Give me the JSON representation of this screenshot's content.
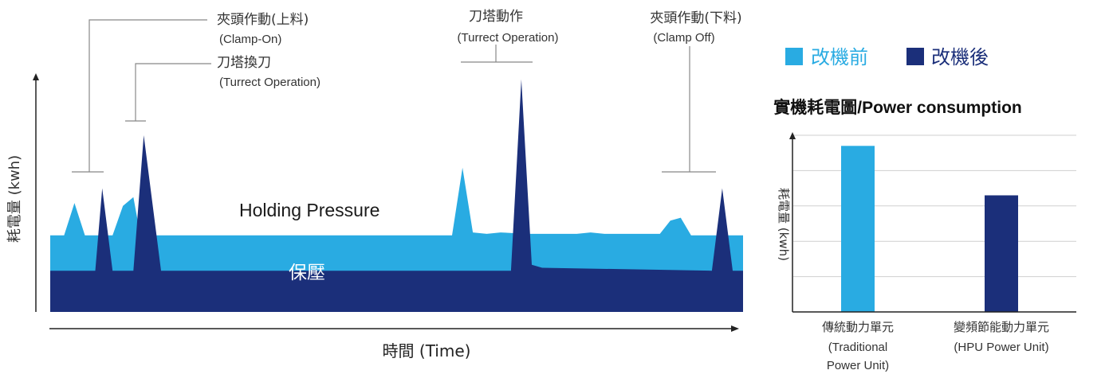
{
  "colors": {
    "before": "#29abe2",
    "after": "#1b2f7a",
    "axis": "#222222",
    "leader": "#888888",
    "grid": "#cfcfcf"
  },
  "annotations": [
    {
      "zh": "夾頭作動(上料)",
      "en": "(Clamp-On)"
    },
    {
      "zh": "刀塔換刀",
      "en": "(Turrect Operation)"
    },
    {
      "zh": "刀塔動作",
      "en": "(Turrect Operation)"
    },
    {
      "zh": "夾頭作動(下料)",
      "en": "(Clamp Off)"
    }
  ],
  "legend": [
    {
      "label": "改機前",
      "color": "#29abe2"
    },
    {
      "label": "改機後",
      "color": "#1b2f7a"
    }
  ],
  "chart_data": [
    {
      "type": "area",
      "ylabel": "耗電量 (kwh)",
      "xlabel": "時間 (Time)",
      "labels": {
        "holding_en": "Holding Pressure",
        "holding_zh": "保壓"
      },
      "series": [
        {
          "name": "改機前",
          "color": "#29abe2",
          "points": [
            [
              0,
              0.52
            ],
            [
              2,
              0.52
            ],
            [
              3.5,
              0.74
            ],
            [
              5,
              0.52
            ],
            [
              9,
              0.52
            ],
            [
              10.5,
              0.72
            ],
            [
              12,
              0.78
            ],
            [
              13,
              0.52
            ],
            [
              58,
              0.52
            ],
            [
              59.5,
              0.98
            ],
            [
              61,
              0.54
            ],
            [
              63,
              0.53
            ],
            [
              65,
              0.54
            ],
            [
              69,
              0.53
            ],
            [
              76,
              0.53
            ],
            [
              78,
              0.54
            ],
            [
              80,
              0.53
            ],
            [
              88,
              0.53
            ],
            [
              89.5,
              0.62
            ],
            [
              91,
              0.64
            ],
            [
              92.5,
              0.52
            ],
            [
              100,
              0.52
            ]
          ]
        },
        {
          "name": "改機後",
          "color": "#1b2f7a",
          "points": [
            [
              0,
              0.28
            ],
            [
              6.5,
              0.28
            ],
            [
              7.5,
              0.84
            ],
            [
              9,
              0.28
            ],
            [
              12,
              0.28
            ],
            [
              13.5,
              1.2
            ],
            [
              16,
              0.28
            ],
            [
              66.5,
              0.28
            ],
            [
              68,
              1.58
            ],
            [
              69.5,
              0.32
            ],
            [
              71,
              0.3
            ],
            [
              95.5,
              0.28
            ],
            [
              97,
              0.84
            ],
            [
              98.5,
              0.28
            ],
            [
              100,
              0.28
            ]
          ]
        }
      ]
    },
    {
      "type": "bar",
      "title": "實機耗電圖/Power consumption",
      "ylabel": "耗電量 (kwh)",
      "categories": [
        {
          "line1": "傳統動力單元",
          "line2": "(Traditional",
          "line3": "Power Unit)"
        },
        {
          "line1": "變頻節能動力單元",
          "line2": "(HPU Power Unit)",
          "line3": ""
        }
      ],
      "values": [
        4.7,
        3.3
      ],
      "ylim": [
        0,
        5
      ],
      "grid": true
    }
  ]
}
